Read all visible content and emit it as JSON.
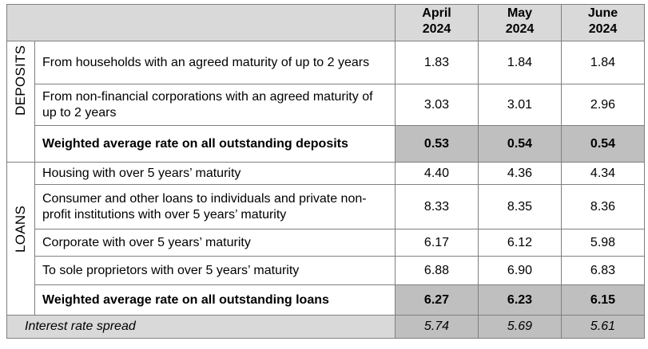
{
  "header": {
    "months": [
      "April\n2024",
      "May\n2024",
      "June\n2024"
    ],
    "month_lines": [
      [
        "April",
        "2024"
      ],
      [
        "May",
        "2024"
      ],
      [
        "June",
        "2024"
      ]
    ]
  },
  "deposits": {
    "group_label": "DEPOSITS",
    "rows": [
      {
        "label": "From households with an agreed maturity of up to 2 years",
        "values": [
          "1.83",
          "1.84",
          "1.84"
        ]
      },
      {
        "label": "From non-financial corporations with an agreed maturity of up to 2 years",
        "values": [
          "3.03",
          "3.01",
          "2.96"
        ]
      }
    ],
    "average": {
      "label": "Weighted average rate on all outstanding deposits",
      "values": [
        "0.53",
        "0.54",
        "0.54"
      ]
    }
  },
  "loans": {
    "group_label": "LOANS",
    "rows": [
      {
        "label": "Housing with over 5 years’ maturity",
        "values": [
          "4.40",
          "4.36",
          "4.34"
        ]
      },
      {
        "label": "Consumer and other loans to individuals and private non-profit institutions with over 5 years’ maturity",
        "values": [
          "8.33",
          "8.35",
          "8.36"
        ]
      },
      {
        "label": "Corporate with over 5 years’ maturity",
        "values": [
          "6.17",
          "6.12",
          "5.98"
        ]
      },
      {
        "label": "To sole proprietors with over 5 years’ maturity",
        "values": [
          "6.88",
          "6.90",
          "6.83"
        ]
      }
    ],
    "average": {
      "label": "Weighted average rate on all outstanding loans",
      "values": [
        "6.27",
        "6.23",
        "6.15"
      ]
    }
  },
  "spread": {
    "label": "Interest rate spread",
    "values": [
      "5.74",
      "5.69",
      "5.61"
    ]
  }
}
